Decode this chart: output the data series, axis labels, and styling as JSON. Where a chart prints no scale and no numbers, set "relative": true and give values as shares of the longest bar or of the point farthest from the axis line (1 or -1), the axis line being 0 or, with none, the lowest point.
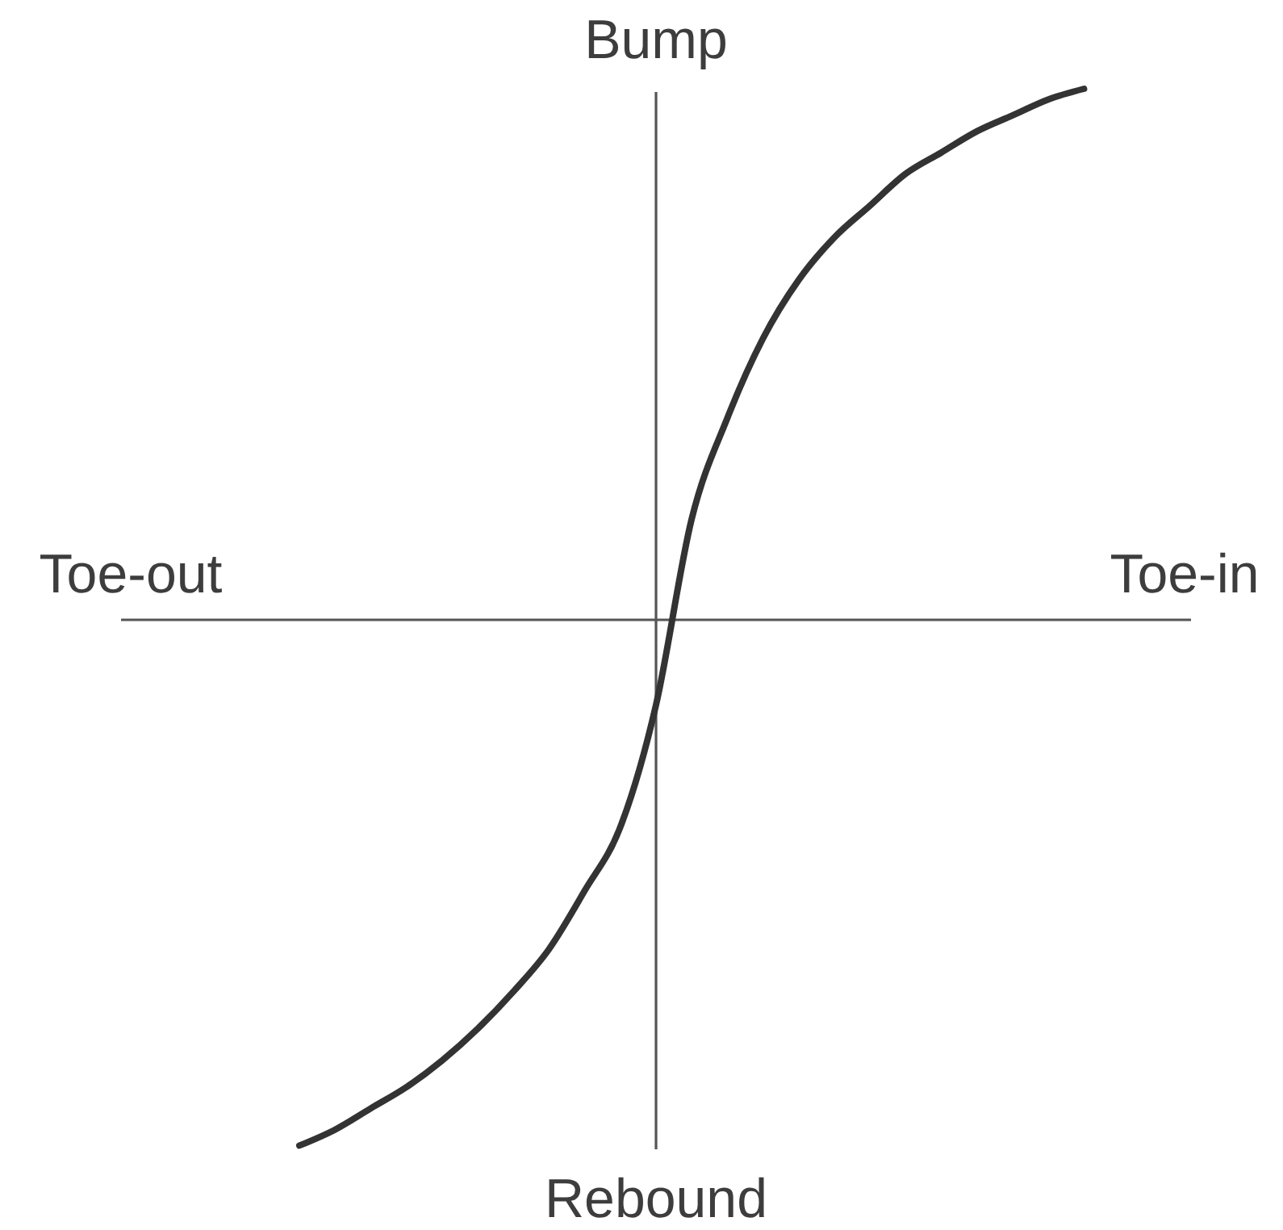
{
  "chart_data": {
    "type": "line",
    "relative": true,
    "ylabel": "Bump",
    "xlabel": "Toe-in",
    "annotations": [
      "Rebound",
      "Toe-out"
    ],
    "categories": [
      null,
      null,
      null,
      null,
      null,
      null,
      null,
      null,
      null,
      null,
      null,
      null,
      null,
      null,
      null,
      null,
      null,
      null,
      null,
      null,
      null,
      null,
      null,
      null,
      null,
      null,
      null,
      null,
      null,
      null,
      null
    ],
    "color": "#333333",
    "values": [
      null,
      null,
      null,
      null,
      null,
      -0.99,
      -0.96,
      -0.92,
      -0.88,
      -0.83,
      -0.77,
      -0.7,
      -0.62,
      -0.51,
      -0.39,
      -0.16,
      0.19,
      0.38,
      0.53,
      0.64,
      0.72,
      0.78,
      0.84,
      0.88,
      0.92,
      0.95,
      0.98,
      1.0,
      null,
      null,
      null
    ]
  }
}
